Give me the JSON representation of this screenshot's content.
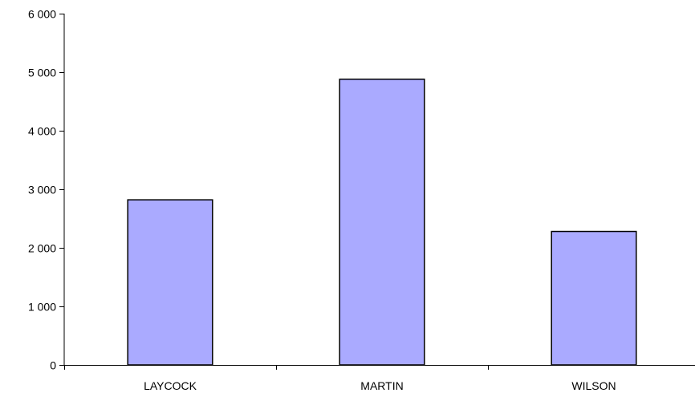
{
  "chart_data": {
    "type": "bar",
    "title": "",
    "xlabel": "",
    "ylabel": "",
    "categories": [
      "LAYCOCK",
      "MARTIN",
      "WILSON"
    ],
    "values": [
      2820,
      4880,
      2280
    ],
    "ylim": [
      0,
      6000
    ],
    "yticks": [
      0,
      1000,
      2000,
      3000,
      4000,
      5000,
      6000
    ],
    "ytick_labels": [
      "0",
      "1 000",
      "2 000",
      "3 000",
      "4 000",
      "5 000",
      "6 000"
    ],
    "grid": false,
    "legend": "none",
    "bar_color": "#aaaaff",
    "bar_outline_color": "#000000",
    "axis_color": "#000000"
  }
}
